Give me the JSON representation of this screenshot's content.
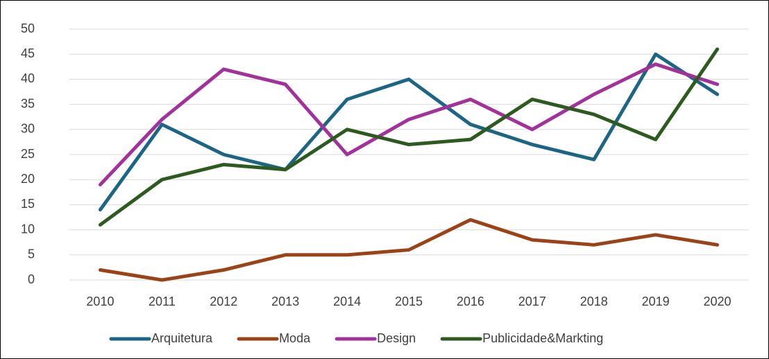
{
  "chart_data": {
    "type": "line",
    "categories": [
      "2010",
      "2011",
      "2012",
      "2013",
      "2014",
      "2015",
      "2016",
      "2017",
      "2018",
      "2019",
      "2020"
    ],
    "series": [
      {
        "name": "Arquitetura",
        "color": "#1d6585",
        "values": [
          14,
          31,
          25,
          22,
          36,
          40,
          31,
          27,
          24,
          45,
          37
        ]
      },
      {
        "name": "Moda",
        "color": "#9b4317",
        "values": [
          2,
          0,
          2,
          5,
          5,
          6,
          12,
          8,
          7,
          9,
          7
        ]
      },
      {
        "name": "Design",
        "color": "#a1329b",
        "values": [
          19,
          32,
          42,
          39,
          25,
          32,
          36,
          30,
          37,
          43,
          39
        ]
      },
      {
        "name": "Publicidade&Markting",
        "color": "#2d5a1e",
        "values": [
          11,
          20,
          23,
          22,
          30,
          27,
          28,
          36,
          33,
          28,
          46
        ]
      }
    ],
    "ylim": [
      0,
      50
    ],
    "yticks": [
      0,
      5,
      10,
      15,
      20,
      25,
      30,
      35,
      40,
      45,
      50
    ],
    "grid": true,
    "legend": "bottom"
  }
}
